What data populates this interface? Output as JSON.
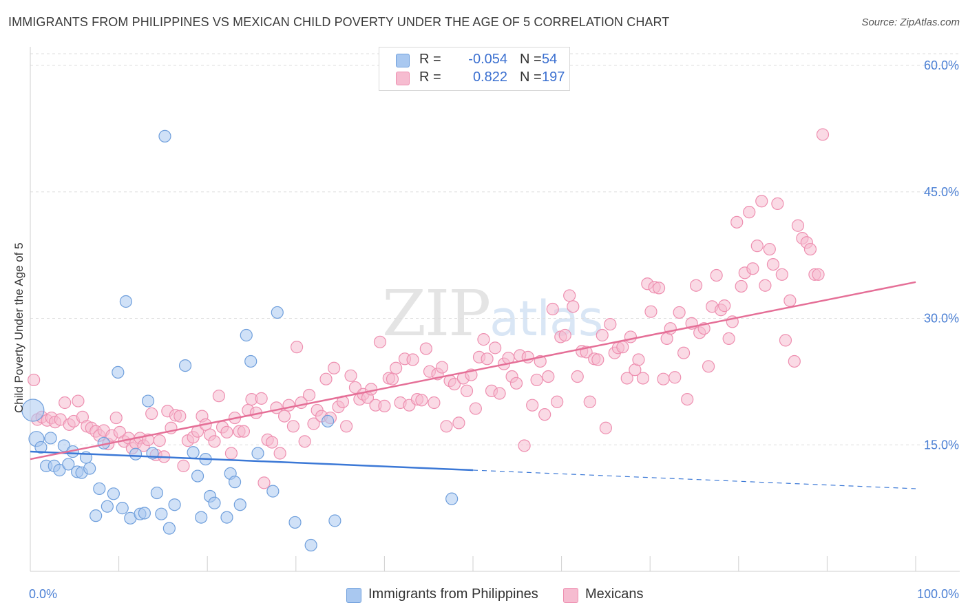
{
  "header": {
    "title": "IMMIGRANTS FROM PHILIPPINES VS MEXICAN CHILD POVERTY UNDER THE AGE OF 5 CORRELATION CHART",
    "source": "Source: ZipAtlas.com"
  },
  "watermark": {
    "zip": "ZIP",
    "atlas": "atlas"
  },
  "legend": {
    "rows": [
      {
        "r_label": "R =",
        "r_value": "-0.054",
        "n_label": "N =",
        "n_value": "54"
      },
      {
        "r_label": "R =",
        "r_value": "0.822",
        "n_label": "N =",
        "n_value": "197"
      }
    ]
  },
  "bottom_legend": {
    "items": [
      {
        "label": "Immigrants from Philippines"
      },
      {
        "label": "Mexicans"
      }
    ]
  },
  "colors": {
    "blue_fill": "#a9c8f0",
    "blue_stroke": "#6f9fdc",
    "blue_line": "#3b78d6",
    "pink_fill": "#f6bcd0",
    "pink_stroke": "#ee8fb0",
    "pink_line": "#e56f97",
    "grid": "#dedede",
    "tick_text": "#4a7fd4"
  },
  "chart_data": {
    "type": "scatter",
    "title": "IMMIGRANTS FROM PHILIPPINES VS MEXICAN CHILD POVERTY UNDER THE AGE OF 5 CORRELATION CHART",
    "xlabel": "",
    "ylabel": "Child Poverty Under the Age of 5",
    "xlim": [
      0,
      100
    ],
    "ylim": [
      0,
      60
    ],
    "x_tick_labels": [
      "0.0%",
      "100.0%"
    ],
    "y_ticks": [
      15,
      30,
      45,
      60
    ],
    "y_tick_labels": [
      "15.0%",
      "30.0%",
      "45.0%",
      "60.0%"
    ],
    "grid": true,
    "series": [
      {
        "name": "Immigrants from Philippines",
        "color": "blue",
        "points": [
          [
            0.3,
            19.1
          ],
          [
            0.7,
            15.7
          ],
          [
            1.2,
            14.7
          ],
          [
            1.8,
            12.5
          ],
          [
            2.3,
            15.8
          ],
          [
            2.7,
            12.5
          ],
          [
            3.3,
            12.0
          ],
          [
            3.8,
            14.9
          ],
          [
            4.3,
            12.7
          ],
          [
            4.8,
            14.2
          ],
          [
            5.3,
            11.8
          ],
          [
            5.8,
            11.7
          ],
          [
            6.3,
            13.5
          ],
          [
            6.7,
            12.2
          ],
          [
            7.4,
            6.6
          ],
          [
            7.8,
            9.8
          ],
          [
            8.3,
            15.2
          ],
          [
            8.7,
            7.7
          ],
          [
            9.4,
            9.2
          ],
          [
            9.9,
            23.6
          ],
          [
            10.4,
            7.5
          ],
          [
            10.8,
            32.0
          ],
          [
            11.3,
            6.3
          ],
          [
            11.9,
            13.9
          ],
          [
            12.4,
            6.8
          ],
          [
            12.9,
            6.9
          ],
          [
            13.3,
            20.2
          ],
          [
            13.8,
            14.0
          ],
          [
            14.3,
            9.3
          ],
          [
            14.8,
            6.8
          ],
          [
            15.2,
            51.6
          ],
          [
            15.7,
            5.1
          ],
          [
            16.3,
            7.9
          ],
          [
            17.5,
            24.4
          ],
          [
            18.4,
            14.1
          ],
          [
            18.9,
            11.3
          ],
          [
            19.3,
            6.4
          ],
          [
            19.8,
            13.3
          ],
          [
            20.3,
            8.9
          ],
          [
            20.8,
            8.1
          ],
          [
            22.2,
            6.4
          ],
          [
            22.6,
            11.6
          ],
          [
            23.1,
            10.6
          ],
          [
            23.7,
            7.9
          ],
          [
            24.4,
            28.0
          ],
          [
            24.9,
            24.9
          ],
          [
            25.7,
            14.0
          ],
          [
            27.4,
            9.5
          ],
          [
            27.9,
            30.7
          ],
          [
            29.9,
            5.8
          ],
          [
            31.7,
            3.1
          ],
          [
            33.6,
            17.8
          ],
          [
            34.4,
            6.0
          ],
          [
            47.6,
            8.6
          ]
        ]
      },
      {
        "name": "Mexicans",
        "color": "pink",
        "points": [
          [
            0.4,
            22.7
          ],
          [
            0.8,
            18.0
          ],
          [
            1.3,
            18.3
          ],
          [
            1.9,
            17.9
          ],
          [
            2.4,
            18.2
          ],
          [
            2.8,
            17.7
          ],
          [
            3.4,
            18.0
          ],
          [
            3.9,
            20.0
          ],
          [
            4.4,
            17.4
          ],
          [
            4.9,
            17.8
          ],
          [
            5.4,
            20.2
          ],
          [
            5.9,
            18.3
          ],
          [
            6.4,
            17.2
          ],
          [
            6.9,
            17.0
          ],
          [
            7.4,
            16.6
          ],
          [
            7.8,
            16.1
          ],
          [
            8.3,
            16.7
          ],
          [
            8.8,
            15.1
          ],
          [
            9.2,
            16.1
          ],
          [
            9.7,
            18.2
          ],
          [
            10.1,
            16.5
          ],
          [
            10.6,
            15.4
          ],
          [
            11.1,
            15.8
          ],
          [
            11.5,
            14.6
          ],
          [
            11.9,
            15.2
          ],
          [
            12.4,
            15.8
          ],
          [
            12.8,
            14.9
          ],
          [
            13.3,
            15.6
          ],
          [
            13.7,
            18.7
          ],
          [
            14.2,
            13.8
          ],
          [
            14.6,
            15.5
          ],
          [
            15.1,
            13.6
          ],
          [
            15.5,
            19.0
          ],
          [
            15.9,
            17.0
          ],
          [
            16.4,
            18.5
          ],
          [
            16.9,
            18.4
          ],
          [
            17.3,
            12.5
          ],
          [
            17.8,
            15.5
          ],
          [
            18.4,
            15.9
          ],
          [
            18.9,
            16.6
          ],
          [
            19.4,
            18.4
          ],
          [
            19.8,
            17.4
          ],
          [
            20.3,
            16.2
          ],
          [
            20.8,
            15.4
          ],
          [
            21.3,
            20.8
          ],
          [
            21.7,
            17.1
          ],
          [
            22.2,
            16.5
          ],
          [
            22.7,
            14.0
          ],
          [
            23.1,
            18.2
          ],
          [
            23.6,
            16.6
          ],
          [
            24.1,
            16.6
          ],
          [
            24.6,
            19.1
          ],
          [
            25.0,
            20.4
          ],
          [
            25.5,
            18.8
          ],
          [
            26.1,
            20.5
          ],
          [
            26.4,
            10.5
          ],
          [
            26.8,
            15.6
          ],
          [
            27.3,
            15.3
          ],
          [
            27.8,
            19.4
          ],
          [
            28.2,
            14.0
          ],
          [
            28.7,
            18.4
          ],
          [
            29.2,
            19.7
          ],
          [
            29.7,
            17.2
          ],
          [
            30.1,
            26.6
          ],
          [
            30.6,
            20.0
          ],
          [
            31.0,
            15.4
          ],
          [
            31.5,
            20.9
          ],
          [
            32.0,
            17.5
          ],
          [
            32.4,
            19.1
          ],
          [
            32.9,
            18.4
          ],
          [
            33.4,
            22.8
          ],
          [
            33.9,
            18.2
          ],
          [
            34.3,
            24.1
          ],
          [
            34.8,
            19.5
          ],
          [
            35.3,
            20.1
          ],
          [
            35.7,
            17.2
          ],
          [
            36.2,
            23.2
          ],
          [
            36.7,
            21.8
          ],
          [
            37.2,
            20.4
          ],
          [
            37.6,
            21.0
          ],
          [
            38.1,
            20.6
          ],
          [
            38.5,
            21.6
          ],
          [
            39.0,
            19.7
          ],
          [
            39.5,
            27.2
          ],
          [
            40.0,
            19.6
          ],
          [
            40.5,
            22.9
          ],
          [
            40.9,
            22.8
          ],
          [
            41.3,
            24.1
          ],
          [
            41.8,
            20.0
          ],
          [
            42.3,
            25.2
          ],
          [
            42.8,
            19.7
          ],
          [
            43.2,
            25.1
          ],
          [
            43.7,
            20.4
          ],
          [
            44.2,
            20.3
          ],
          [
            44.7,
            26.4
          ],
          [
            45.1,
            23.7
          ],
          [
            45.6,
            20.0
          ],
          [
            46.0,
            23.4
          ],
          [
            46.5,
            24.2
          ],
          [
            47.0,
            17.2
          ],
          [
            47.4,
            22.6
          ],
          [
            47.9,
            22.2
          ],
          [
            48.4,
            17.6
          ],
          [
            48.9,
            22.9
          ],
          [
            49.3,
            21.4
          ],
          [
            49.8,
            23.3
          ],
          [
            50.3,
            19.3
          ],
          [
            50.7,
            25.4
          ],
          [
            51.2,
            27.5
          ],
          [
            51.6,
            25.2
          ],
          [
            52.1,
            21.4
          ],
          [
            52.5,
            26.5
          ],
          [
            53.0,
            21.1
          ],
          [
            53.5,
            24.6
          ],
          [
            54.0,
            25.3
          ],
          [
            54.4,
            23.1
          ],
          [
            54.9,
            22.3
          ],
          [
            55.3,
            25.6
          ],
          [
            55.8,
            14.9
          ],
          [
            56.2,
            25.4
          ],
          [
            56.7,
            19.7
          ],
          [
            57.2,
            22.7
          ],
          [
            57.6,
            24.9
          ],
          [
            58.1,
            18.6
          ],
          [
            58.5,
            23.1
          ],
          [
            59.0,
            31.1
          ],
          [
            59.5,
            20.1
          ],
          [
            59.9,
            27.8
          ],
          [
            60.4,
            28.0
          ],
          [
            60.9,
            32.7
          ],
          [
            61.3,
            31.4
          ],
          [
            61.8,
            23.1
          ],
          [
            62.3,
            26.1
          ],
          [
            62.8,
            26.0
          ],
          [
            63.2,
            20.1
          ],
          [
            63.7,
            25.2
          ],
          [
            64.1,
            25.1
          ],
          [
            64.6,
            28.0
          ],
          [
            65.0,
            17.0
          ],
          [
            65.5,
            29.3
          ],
          [
            66.0,
            25.9
          ],
          [
            66.4,
            26.5
          ],
          [
            66.9,
            26.6
          ],
          [
            67.4,
            22.9
          ],
          [
            67.8,
            27.8
          ],
          [
            68.3,
            23.9
          ],
          [
            68.7,
            25.1
          ],
          [
            69.2,
            22.9
          ],
          [
            69.7,
            34.1
          ],
          [
            70.1,
            30.8
          ],
          [
            70.5,
            33.7
          ],
          [
            71.0,
            33.6
          ],
          [
            71.5,
            22.8
          ],
          [
            71.9,
            27.6
          ],
          [
            72.3,
            28.8
          ],
          [
            72.8,
            23.0
          ],
          [
            73.3,
            30.7
          ],
          [
            73.8,
            25.9
          ],
          [
            74.2,
            20.4
          ],
          [
            74.7,
            29.4
          ],
          [
            75.2,
            33.9
          ],
          [
            75.6,
            28.3
          ],
          [
            76.1,
            28.8
          ],
          [
            76.6,
            24.3
          ],
          [
            77.0,
            31.4
          ],
          [
            77.5,
            35.1
          ],
          [
            78.0,
            31.0
          ],
          [
            78.4,
            31.5
          ],
          [
            78.9,
            27.6
          ],
          [
            79.3,
            29.6
          ],
          [
            79.8,
            41.4
          ],
          [
            80.3,
            33.8
          ],
          [
            80.7,
            35.4
          ],
          [
            81.2,
            42.6
          ],
          [
            81.6,
            35.9
          ],
          [
            82.1,
            38.6
          ],
          [
            82.6,
            43.9
          ],
          [
            83.0,
            33.9
          ],
          [
            83.5,
            38.2
          ],
          [
            83.9,
            36.4
          ],
          [
            84.4,
            43.6
          ],
          [
            84.9,
            35.2
          ],
          [
            85.3,
            27.4
          ],
          [
            85.8,
            32.1
          ],
          [
            86.3,
            24.9
          ],
          [
            86.7,
            41.0
          ],
          [
            87.2,
            39.5
          ],
          [
            87.7,
            39.0
          ],
          [
            88.1,
            38.2
          ],
          [
            88.6,
            35.2
          ],
          [
            89.0,
            35.2
          ],
          [
            89.5,
            51.8
          ]
        ]
      }
    ],
    "trend_lines": [
      {
        "series": "Immigrants from Philippines",
        "x0": 0,
        "y0": 14.2,
        "x_solid_end": 50,
        "y_solid_end": 12.0,
        "x1": 100,
        "y1": 9.8
      },
      {
        "series": "Mexicans",
        "x0": 0,
        "y0": 13.3,
        "x1": 100,
        "y1": 34.3
      }
    ]
  }
}
